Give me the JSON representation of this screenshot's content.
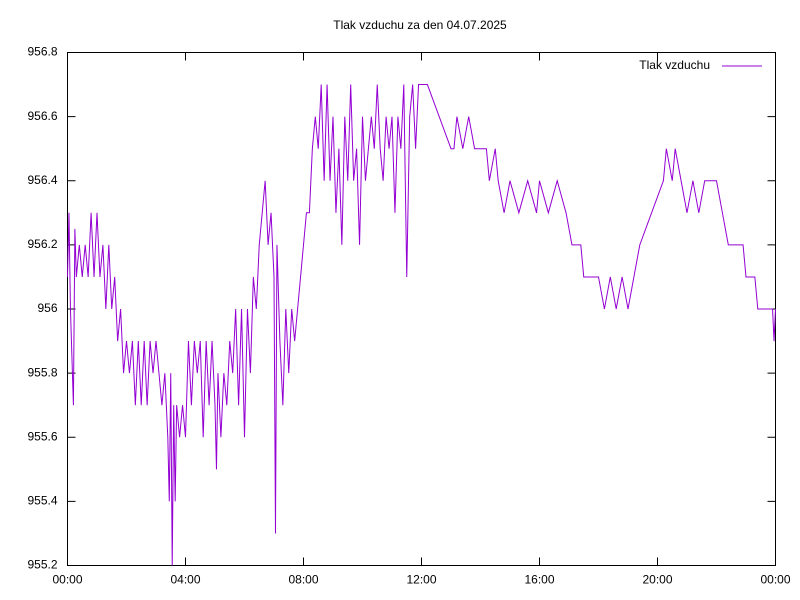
{
  "chart_data": {
    "type": "line",
    "title": "Tlak vzduchu za den 04.07.2025",
    "x": [
      0.0,
      0.05,
      0.1,
      0.15,
      0.2,
      0.25,
      0.3,
      0.4,
      0.5,
      0.6,
      0.7,
      0.8,
      0.9,
      1.0,
      1.1,
      1.2,
      1.3,
      1.4,
      1.5,
      1.6,
      1.7,
      1.8,
      1.9,
      2.0,
      2.1,
      2.2,
      2.3,
      2.4,
      2.5,
      2.6,
      2.7,
      2.8,
      2.9,
      3.0,
      3.1,
      3.2,
      3.3,
      3.4,
      3.45,
      3.5,
      3.55,
      3.6,
      3.65,
      3.7,
      3.8,
      3.9,
      4.0,
      4.1,
      4.2,
      4.3,
      4.4,
      4.5,
      4.6,
      4.7,
      4.8,
      4.9,
      5.0,
      5.05,
      5.1,
      5.2,
      5.3,
      5.4,
      5.5,
      5.6,
      5.7,
      5.8,
      5.9,
      6.0,
      6.1,
      6.2,
      6.3,
      6.4,
      6.5,
      6.6,
      6.7,
      6.8,
      6.9,
      7.0,
      7.05,
      7.1,
      7.2,
      7.3,
      7.4,
      7.5,
      7.6,
      7.7,
      7.8,
      7.9,
      8.0,
      8.1,
      8.2,
      8.3,
      8.4,
      8.5,
      8.6,
      8.7,
      8.8,
      8.9,
      9.0,
      9.1,
      9.2,
      9.3,
      9.4,
      9.5,
      9.6,
      9.7,
      9.8,
      9.9,
      10.0,
      10.1,
      10.2,
      10.3,
      10.4,
      10.5,
      10.6,
      10.7,
      10.8,
      10.9,
      11.0,
      11.1,
      11.2,
      11.3,
      11.4,
      11.5,
      11.6,
      11.7,
      11.8,
      11.9,
      12.0,
      12.2,
      13.0,
      13.1,
      13.2,
      13.4,
      13.6,
      13.8,
      14.2,
      14.3,
      14.5,
      14.6,
      14.8,
      15.0,
      15.3,
      15.6,
      15.9,
      16.0,
      16.3,
      16.6,
      16.9,
      17.1,
      17.4,
      17.5,
      17.7,
      18.0,
      18.2,
      18.4,
      18.6,
      18.8,
      19.0,
      19.2,
      19.4,
      19.8,
      20.2,
      20.3,
      20.5,
      20.6,
      20.8,
      21.0,
      21.2,
      21.4,
      21.6,
      22.0,
      22.2,
      22.4,
      22.9,
      23.0,
      23.3,
      23.4,
      23.9,
      23.95,
      24.0
    ],
    "series": [
      {
        "name": "Tlak vzduchu",
        "color": "#9400d3",
        "values": [
          956.1,
          956.3,
          956.0,
          955.85,
          955.7,
          956.25,
          956.1,
          956.2,
          956.1,
          956.2,
          956.1,
          956.3,
          956.1,
          956.3,
          956.1,
          956.2,
          956.0,
          956.2,
          956.0,
          956.1,
          955.9,
          956.0,
          955.8,
          955.9,
          955.8,
          955.9,
          955.7,
          955.9,
          955.7,
          955.9,
          955.7,
          955.9,
          955.8,
          955.9,
          955.8,
          955.7,
          955.8,
          955.6,
          955.4,
          955.8,
          955.2,
          955.7,
          955.4,
          955.7,
          955.6,
          955.7,
          955.6,
          955.9,
          955.7,
          955.9,
          955.8,
          955.9,
          955.6,
          955.9,
          955.7,
          955.9,
          955.7,
          955.5,
          955.8,
          955.6,
          955.8,
          955.7,
          955.9,
          955.8,
          956.0,
          955.7,
          956.0,
          955.6,
          956.0,
          955.8,
          956.1,
          956.0,
          956.2,
          956.3,
          956.4,
          956.2,
          956.3,
          956.1,
          955.3,
          956.2,
          955.9,
          955.7,
          956.0,
          955.8,
          956.0,
          955.9,
          956.0,
          956.1,
          956.2,
          956.3,
          956.3,
          956.5,
          956.6,
          956.5,
          956.7,
          956.4,
          956.7,
          956.4,
          956.6,
          956.3,
          956.5,
          956.2,
          956.6,
          956.4,
          956.7,
          956.4,
          956.5,
          956.2,
          956.6,
          956.4,
          956.5,
          956.6,
          956.5,
          956.7,
          956.5,
          956.4,
          956.6,
          956.5,
          956.6,
          956.3,
          956.6,
          956.5,
          956.7,
          956.1,
          956.6,
          956.7,
          956.5,
          956.7,
          956.7,
          956.7,
          956.5,
          956.5,
          956.6,
          956.5,
          956.6,
          956.5,
          956.5,
          956.4,
          956.5,
          956.4,
          956.3,
          956.4,
          956.3,
          956.4,
          956.3,
          956.4,
          956.3,
          956.4,
          956.3,
          956.2,
          956.2,
          956.1,
          956.1,
          956.1,
          956.0,
          956.1,
          956.0,
          956.1,
          956.0,
          956.1,
          956.2,
          956.3,
          956.4,
          956.5,
          956.4,
          956.5,
          956.4,
          956.3,
          956.4,
          956.3,
          956.4,
          956.4,
          956.3,
          956.2,
          956.2,
          956.1,
          956.1,
          956.0,
          956.0,
          955.9,
          956.0
        ]
      }
    ],
    "xlim": [
      0,
      24
    ],
    "xticks": [
      {
        "value": 0,
        "label": "00:00"
      },
      {
        "value": 4,
        "label": "04:00"
      },
      {
        "value": 8,
        "label": "08:00"
      },
      {
        "value": 12,
        "label": "12:00"
      },
      {
        "value": 16,
        "label": "16:00"
      },
      {
        "value": 20,
        "label": "20:00"
      },
      {
        "value": 24,
        "label": "00:00"
      }
    ],
    "ylim": [
      955.2,
      956.8
    ],
    "yticks": [
      955.2,
      955.4,
      955.6,
      955.8,
      956,
      956.2,
      956.4,
      956.6,
      956.8
    ],
    "grid": false,
    "legend": "top-right"
  }
}
